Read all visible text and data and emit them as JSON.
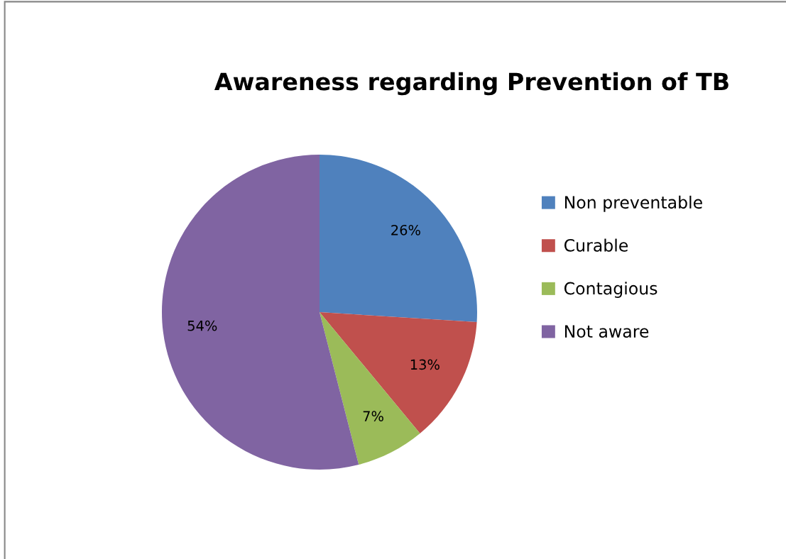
{
  "chart_data": {
    "type": "pie",
    "title": "Awareness regarding Prevention of TB",
    "categories": [
      "Non preventable",
      "Curable",
      "Contagious",
      "Not aware"
    ],
    "values": [
      26,
      13,
      7,
      54
    ],
    "colors": [
      "#4f81bd",
      "#c0504d",
      "#9bbb59",
      "#8064a2"
    ],
    "value_labels": [
      "26%",
      "13%",
      "7%",
      "54%"
    ],
    "legend": "right"
  }
}
